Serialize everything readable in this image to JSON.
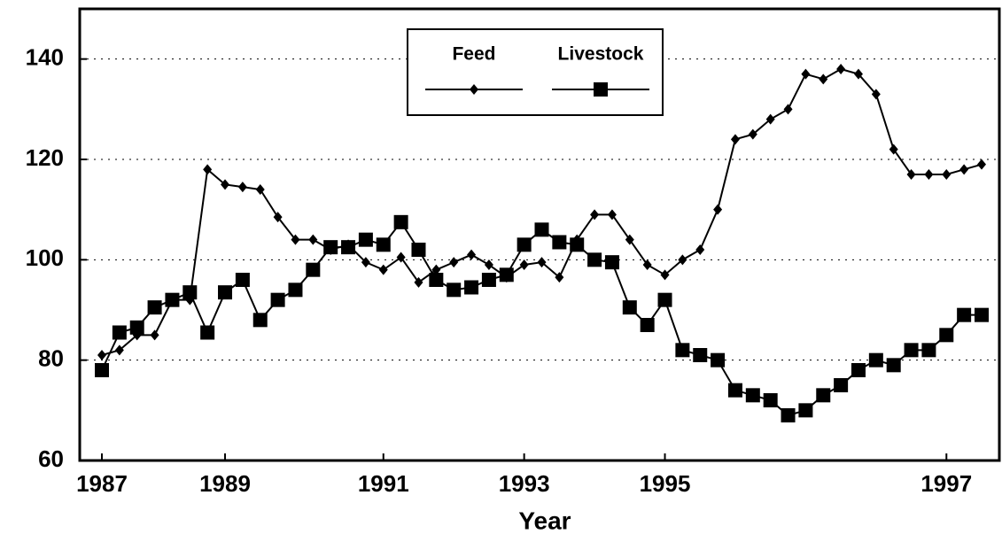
{
  "chart_data": {
    "type": "line",
    "x_label": "Year",
    "categories": [
      "1987",
      null,
      null,
      null,
      null,
      null,
      null,
      "1989",
      null,
      null,
      null,
      null,
      null,
      null,
      null,
      null,
      "1991",
      null,
      null,
      null,
      null,
      null,
      null,
      null,
      "1993",
      null,
      null,
      null,
      null,
      null,
      null,
      null,
      "1995",
      null,
      null,
      null,
      null,
      null,
      null,
      null,
      null,
      null,
      null,
      null,
      null,
      null,
      null,
      null,
      "1997",
      null,
      null
    ],
    "series": [
      {
        "name": "Feed",
        "color": "#000000",
        "marker": "diamond",
        "values": [
          81,
          82,
          85,
          85,
          92,
          92,
          118,
          115,
          114.5,
          114,
          108.5,
          104,
          104,
          102,
          103,
          99.5,
          98,
          100.5,
          95.5,
          98,
          99.5,
          101,
          99,
          96.5,
          99,
          99.5,
          96.5,
          104,
          109,
          109,
          104,
          99,
          97,
          100,
          102,
          110,
          124,
          125,
          128,
          130,
          137,
          136,
          138,
          137,
          133,
          122,
          117,
          117,
          117,
          118,
          119
        ]
      },
      {
        "name": "Livestock",
        "color": "#000000",
        "marker": "square",
        "values": [
          78,
          85.5,
          86.5,
          90.5,
          92,
          93.5,
          85.5,
          93.5,
          96,
          88,
          92,
          94,
          98,
          102.5,
          102.5,
          104,
          103,
          107.5,
          102,
          96,
          94,
          94.5,
          96,
          97,
          103,
          106,
          103.5,
          103,
          100,
          99.5,
          90.5,
          87,
          92,
          82,
          81,
          80,
          74,
          73,
          72,
          69,
          70,
          73,
          75,
          78,
          80,
          79,
          82,
          82,
          85,
          89,
          89
        ]
      }
    ],
    "ylim": [
      60,
      150
    ],
    "yticks": [
      60,
      80,
      100,
      120,
      140
    ],
    "grid": true,
    "legend": "top"
  }
}
